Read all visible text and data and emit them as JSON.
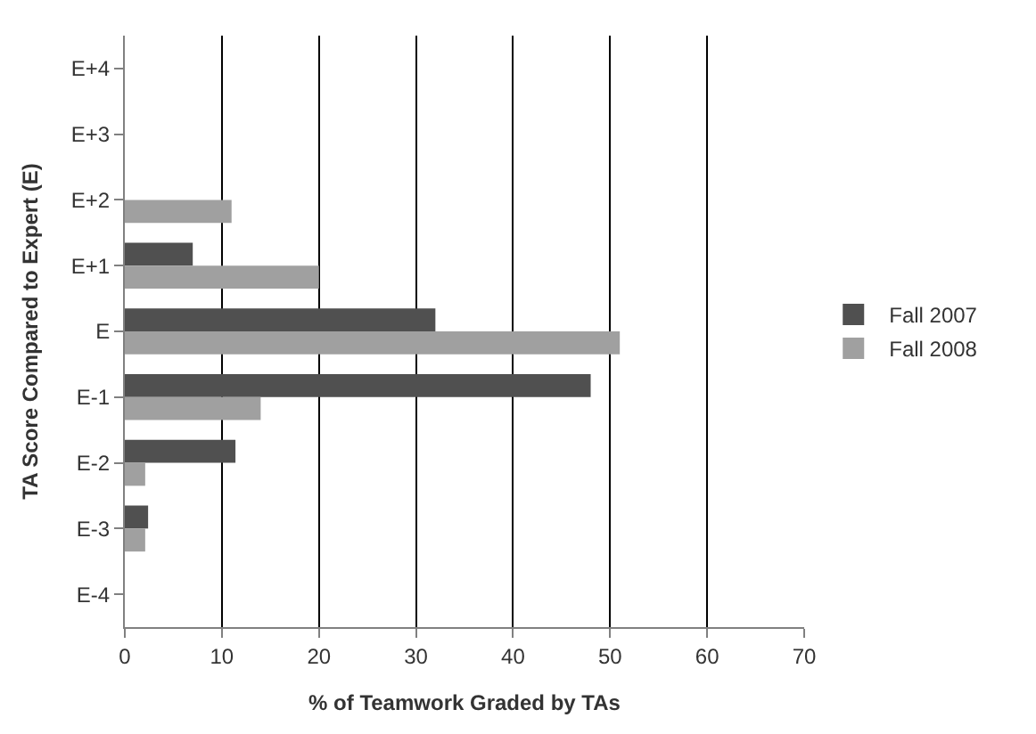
{
  "chart_data": {
    "type": "bar",
    "orientation": "horizontal",
    "xlabel": "% of Teamwork Graded by TAs",
    "ylabel": "TA Score Compared to Expert (E)",
    "categories": [
      "E+4",
      "E+3",
      "E+2",
      "E+1",
      "E",
      "E-1",
      "E-2",
      "E-3",
      "E-4"
    ],
    "series": [
      {
        "name": "Fall 2007",
        "color": "#505050",
        "values": [
          null,
          null,
          null,
          7,
          32,
          48,
          11.4,
          2.4,
          null
        ]
      },
      {
        "name": "Fall 2008",
        "color": "#a0a0a0",
        "values": [
          null,
          null,
          11,
          20,
          51,
          14,
          2.1,
          2.1,
          null
        ]
      }
    ],
    "xlim": [
      0,
      70
    ],
    "xticks": [
      0,
      10,
      20,
      30,
      40,
      50,
      60,
      70
    ],
    "grid": "x",
    "legend": "right"
  }
}
